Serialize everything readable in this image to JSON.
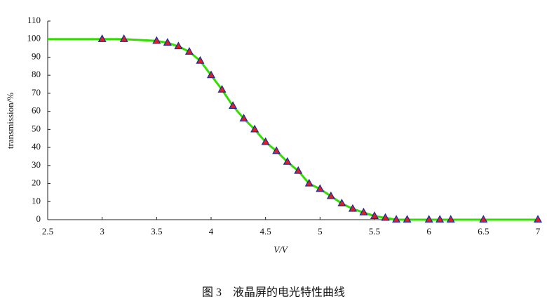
{
  "chart_data": {
    "type": "line",
    "caption": "图 3　液晶屏的电光特性曲线",
    "xlabel": "V/V",
    "ylabel": "transmission/%",
    "x": [
      2.5,
      3,
      3.2,
      3.5,
      3.6,
      3.7,
      3.8,
      3.9,
      4,
      4.1,
      4.2,
      4.3,
      4.4,
      4.5,
      4.6,
      4.7,
      4.8,
      4.9,
      5,
      5.1,
      5.2,
      5.3,
      5.4,
      5.5,
      5.6,
      5.7,
      5.8,
      6,
      6.1,
      6.2,
      6.5,
      7
    ],
    "series": [
      {
        "color": "#33dd00",
        "values": [
          100,
          100,
          100,
          99,
          98,
          96,
          93,
          88,
          80,
          72,
          63,
          56,
          50,
          43,
          38,
          32,
          27,
          20,
          17,
          13,
          9,
          6,
          4,
          2,
          1,
          0,
          0,
          0,
          0,
          0,
          0,
          0
        ]
      },
      {
        "color": "#e02020",
        "marker": "triangle",
        "edgecolor": "#1a2a9a",
        "values": [
          null,
          100,
          100,
          99,
          98,
          96,
          93,
          88,
          80,
          72,
          63,
          56,
          50,
          43,
          38,
          32,
          27,
          20,
          17,
          13,
          9,
          6,
          4,
          2,
          1,
          0,
          0,
          0,
          0,
          0,
          0,
          0
        ]
      }
    ],
    "xlim": [
      2.5,
      7
    ],
    "xticks": [
      2.5,
      3,
      3.5,
      4,
      4.5,
      5,
      5.5,
      6,
      6.5,
      7
    ],
    "ylim": [
      0,
      110
    ],
    "yticks": [
      0,
      10,
      20,
      30,
      40,
      50,
      60,
      70,
      80,
      90,
      100,
      110
    ]
  }
}
